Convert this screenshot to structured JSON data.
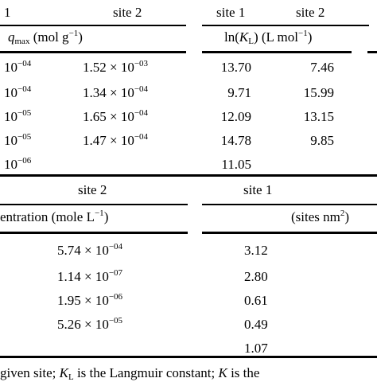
{
  "top_header": {
    "left_col": "1",
    "col2": "site 2",
    "col3": "site 1",
    "col4": "site 2",
    "qmax_sym": "q",
    "qmax_sub": "max",
    "qmax_unit_pre": "(mol g",
    "qmax_unit_exp": "−1",
    "qmax_unit_post": ")",
    "lnk_pre": "ln(",
    "lnk_sym": "K",
    "lnk_sub": "L",
    "lnk_mid": ") (L mol",
    "lnk_exp": "−1",
    "lnk_post": ")"
  },
  "top_rows": [
    {
      "c1_base": "10",
      "c1_exp": "−04",
      "c2_mant": "1.52 × 10",
      "c2_exp": "−03",
      "c3": "13.70",
      "c4": "7.46"
    },
    {
      "c1_base": "10",
      "c1_exp": "−04",
      "c2_mant": "1.34 × 10",
      "c2_exp": "−04",
      "c3": "9.71",
      "c4": "15.99"
    },
    {
      "c1_base": "10",
      "c1_exp": "−05",
      "c2_mant": "1.65 × 10",
      "c2_exp": "−04",
      "c3": "12.09",
      "c4": "13.15"
    },
    {
      "c1_base": "10",
      "c1_exp": "−05",
      "c2_mant": "1.47 × 10",
      "c2_exp": "−04",
      "c3": "14.78",
      "c4": "9.85"
    },
    {
      "c1_base": "10",
      "c1_exp": "−06",
      "c2_mant": "",
      "c2_exp": "",
      "c3": "11.05",
      "c4": ""
    }
  ],
  "bottom_header": {
    "col_a": "site 2",
    "col_b": "site 1",
    "conc_pre": "entration (mole L",
    "conc_exp": "−1",
    "conc_post": ")",
    "sites_pre": "(sites nm",
    "sites_exp": "2",
    "sites_post": ")"
  },
  "bottom_rows": [
    {
      "a_mant": "5.74 × 10",
      "a_exp": "−04",
      "b": "3.12"
    },
    {
      "a_mant": "1.14 × 10",
      "a_exp": "−07",
      "b": "2.80"
    },
    {
      "a_mant": "1.95 × 10",
      "a_exp": "−06",
      "b": "0.61"
    },
    {
      "a_mant": "5.26 × 10",
      "a_exp": "−05",
      "b": "0.49"
    },
    {
      "a_mant": "",
      "a_exp": "",
      "b": "1.07"
    }
  ],
  "footnote": {
    "pre": "given site; ",
    "k1": "K",
    "k1_sub": "L",
    "mid": " is the Langmuir constant; ",
    "k2": "K",
    "post": " is the"
  }
}
